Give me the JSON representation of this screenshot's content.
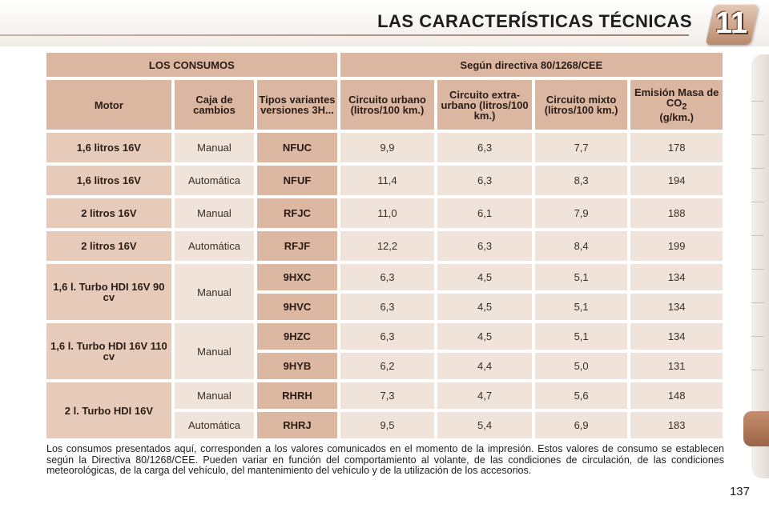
{
  "header": {
    "title": "LAS CARACTERÍSTICAS TÉCNICAS",
    "chapter": "11"
  },
  "table": {
    "group_left": "LOS CONSUMOS",
    "group_right": "Según directiva 80/1268/CEE",
    "columns": {
      "motor": "Motor",
      "gearbox": "Caja de cambios",
      "variants": "Tipos variantes versiones 3H...",
      "urban": "Circuito urbano (litros/100 km.)",
      "extra_urban": "Circuito extra-urbano (litros/100 km.)",
      "mixed": "Circuito mixto (litros/100 km.)",
      "emission": "Emisión Masa de CO",
      "emission_sub": "2",
      "emission_unit": "(g/km.)"
    },
    "motors": [
      "1,6 litros 16V",
      "1,6 litros 16V",
      "2 litros 16V",
      "2 litros 16V",
      "1,6 l. Turbo HDI 16V 90 cv",
      "1,6 l. Turbo HDI 16V 110 cv",
      "2 l. Turbo HDI 16V"
    ],
    "gearboxes": [
      "Manual",
      "Automática",
      "Manual",
      "Automática",
      "Manual",
      "Manual",
      "Manual",
      "Automática"
    ],
    "rows": [
      {
        "code": "NFUC",
        "urban": "9,9",
        "extra": "6,3",
        "mixed": "7,7",
        "co2": "178"
      },
      {
        "code": "NFUF",
        "urban": "11,4",
        "extra": "6,3",
        "mixed": "8,3",
        "co2": "194"
      },
      {
        "code": "RFJC",
        "urban": "11,0",
        "extra": "6,1",
        "mixed": "7,9",
        "co2": "188"
      },
      {
        "code": "RFJF",
        "urban": "12,2",
        "extra": "6,3",
        "mixed": "8,4",
        "co2": "199"
      },
      {
        "code": "9HXC",
        "urban": "6,3",
        "extra": "4,5",
        "mixed": "5,1",
        "co2": "134"
      },
      {
        "code": "9HVC",
        "urban": "6,3",
        "extra": "4,5",
        "mixed": "5,1",
        "co2": "134"
      },
      {
        "code": "9HZC",
        "urban": "6,3",
        "extra": "4,5",
        "mixed": "5,1",
        "co2": "134"
      },
      {
        "code": "9HYB",
        "urban": "6,2",
        "extra": "4,4",
        "mixed": "5,0",
        "co2": "131"
      },
      {
        "code": "RHRH",
        "urban": "7,3",
        "extra": "4,7",
        "mixed": "5,6",
        "co2": "148"
      },
      {
        "code": "RHRJ",
        "urban": "9,5",
        "extra": "5,4",
        "mixed": "6,9",
        "co2": "183"
      }
    ]
  },
  "footnote": "Los consumos presentados aquí, corresponden a los valores comunicados en el momento de la impresión. Estos valores de consumo se establecen según la Directiva 80/1268/CEE. Pueden variar en función del comportamiento al volante, de las condiciones de circulación, de las condiciones meteorológicas, de la carga del vehículo, del mantenimiento del vehículo y de la utilización de los accesorios.",
  "page_number": "137"
}
